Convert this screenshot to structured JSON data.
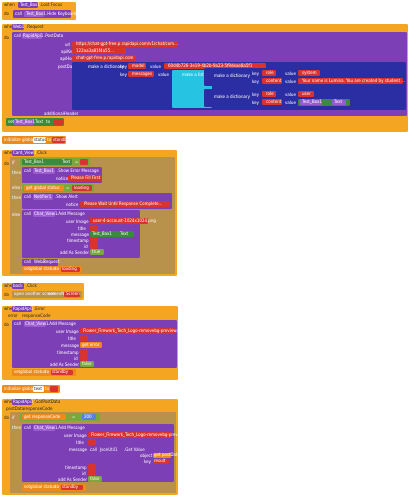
{
  "b1": {
    "when": "when",
    "comp": "Test_Box1",
    "event": ".Lost Focus",
    "do": "do",
    "call": "call",
    "target": "Test_Box1",
    "method": ".Hide Keyboard"
  },
  "b2": {
    "when": "when",
    "comp": "Web1",
    "event": ".Request",
    "do": "do",
    "call": "call",
    "target": "RapidApi1",
    "method": ".PostData",
    "url_label": "url",
    "url_value": "https://chat-gpt-free.p.rapidapi.com/v1/chat/com...",
    "apikey_label": "apiKey",
    "apikey_value": "122aa3a81f4a55...",
    "apihost_label": "apiHost",
    "apihost_value": "chat-gpt-free.p.rapidapi.com",
    "postdata_label": "postData",
    "make_dict": "make a dictionary",
    "key": "key",
    "value": "value",
    "k_model": "model",
    "v_model": "60d4b726-3e19-4b2b-9a23-5f9deae8a5f1",
    "k_messages": "messages",
    "make_list": "make a list",
    "k_role": "role",
    "v_system": "system",
    "k_content": "content",
    "v_content1": "Your name is Lumina. You are created by student ...",
    "k_role2": "role",
    "v_user": "user",
    "k_content2": "content",
    "v_text_comp": "Test_Box1",
    "v_text_prop": "Text",
    "additional": "additionalHeader",
    "set": "set",
    "set_comp": "Test_Box1",
    "set_prop": "Text",
    "to": "to",
    "empty": ""
  },
  "b3": {
    "init": "initialize global",
    "name": "status",
    "to": "to",
    "value": "standby"
  },
  "b4": {
    "when": "when",
    "comp": "Card_View1",
    "event": ".Click",
    "do": "do",
    "if": "if",
    "comp1": "Test_Box1",
    "prop1": "Text",
    "eq": "=",
    "then": "then",
    "call": "call",
    "comp2": "Test_Box1",
    "method2": ".Show Error Message",
    "notice_label": "notice",
    "notice_val": "Please Fill First",
    "elseif": "else if",
    "get_status": "get global status",
    "eq2": "=",
    "str_loading": "loading",
    "then2": "then",
    "call3": "call",
    "comp3": "Notifier1",
    "method3": ".Show Alert",
    "notice2": "notice",
    "notice_val2": "Please Wait Until Response Complete...",
    "else": "else",
    "call4": "call",
    "comp4": "Chat_View1",
    "method4": ".Add Message",
    "user_image": "user Image",
    "img_val": "user-4-account-1024x1024.png",
    "title": "title",
    "message": "message",
    "msg_comp": "Test_Box1",
    "msg_prop": "Text",
    "timestamp": "timestamp",
    "id": "id",
    "add_as_sender": "add As Sender",
    "true_val": "true",
    "call5": "call",
    "comp5": "Web1",
    "method5": ".Request",
    "set": "set",
    "global_status": "global status",
    "to": "to",
    "loading": "loading"
  },
  "b5": {
    "when": "when",
    "comp": "back",
    "event": ".Click",
    "do": "do",
    "method": "open another screen",
    "screenName": "screenName",
    "val": "Screen"
  },
  "b6": {
    "when": "when",
    "comp": "RapidApi1",
    "event": ".Error",
    "error": "error",
    "response": "responseCode",
    "do": "do",
    "call": "call",
    "comp2": "Chat_View1",
    "method": ".Add Message",
    "user_image": "user Image",
    "img_val": "Flower_Firework_Tech_Logo-removebg-preview.png",
    "title": "title",
    "message": "message",
    "get_error": "get error",
    "timestamp": "timestamp",
    "id": "id",
    "add_as_sender": "add As Sender",
    "false_val": "false",
    "set": "set",
    "global_status": "global status",
    "to": "to",
    "standby": "standby"
  },
  "b7": {
    "init": "initialize global",
    "name": "text",
    "to": "to",
    "value": ""
  },
  "b8": {
    "when": "when",
    "comp": "RapidApi1",
    "event": ".GotPostData",
    "postdata": "postData",
    "response": "responseCode",
    "do": "do",
    "if": "if",
    "get_resp": "get responseCode",
    "eq": "=",
    "num": "200",
    "then": "then",
    "call": "call",
    "comp2": "Chat_View1",
    "method": ".Add Message",
    "user_image": "user Image",
    "img_val": "Flower_Firework_Tech_Logo-removebg-preview.png",
    "title": "title",
    "message": "message",
    "call_dict": "call",
    "dict_comp": "JsonUtil1",
    "dict_method": ".Get Value",
    "object": "object",
    "get_postdata": "get postData",
    "key": "key",
    "key_val": "result",
    "timestamp": "timestamp",
    "id": "id",
    "add_as_sender": "add As Sender",
    "false_val": "false",
    "set": "set",
    "global_status": "global status",
    "to": "to",
    "standby": "standby"
  }
}
